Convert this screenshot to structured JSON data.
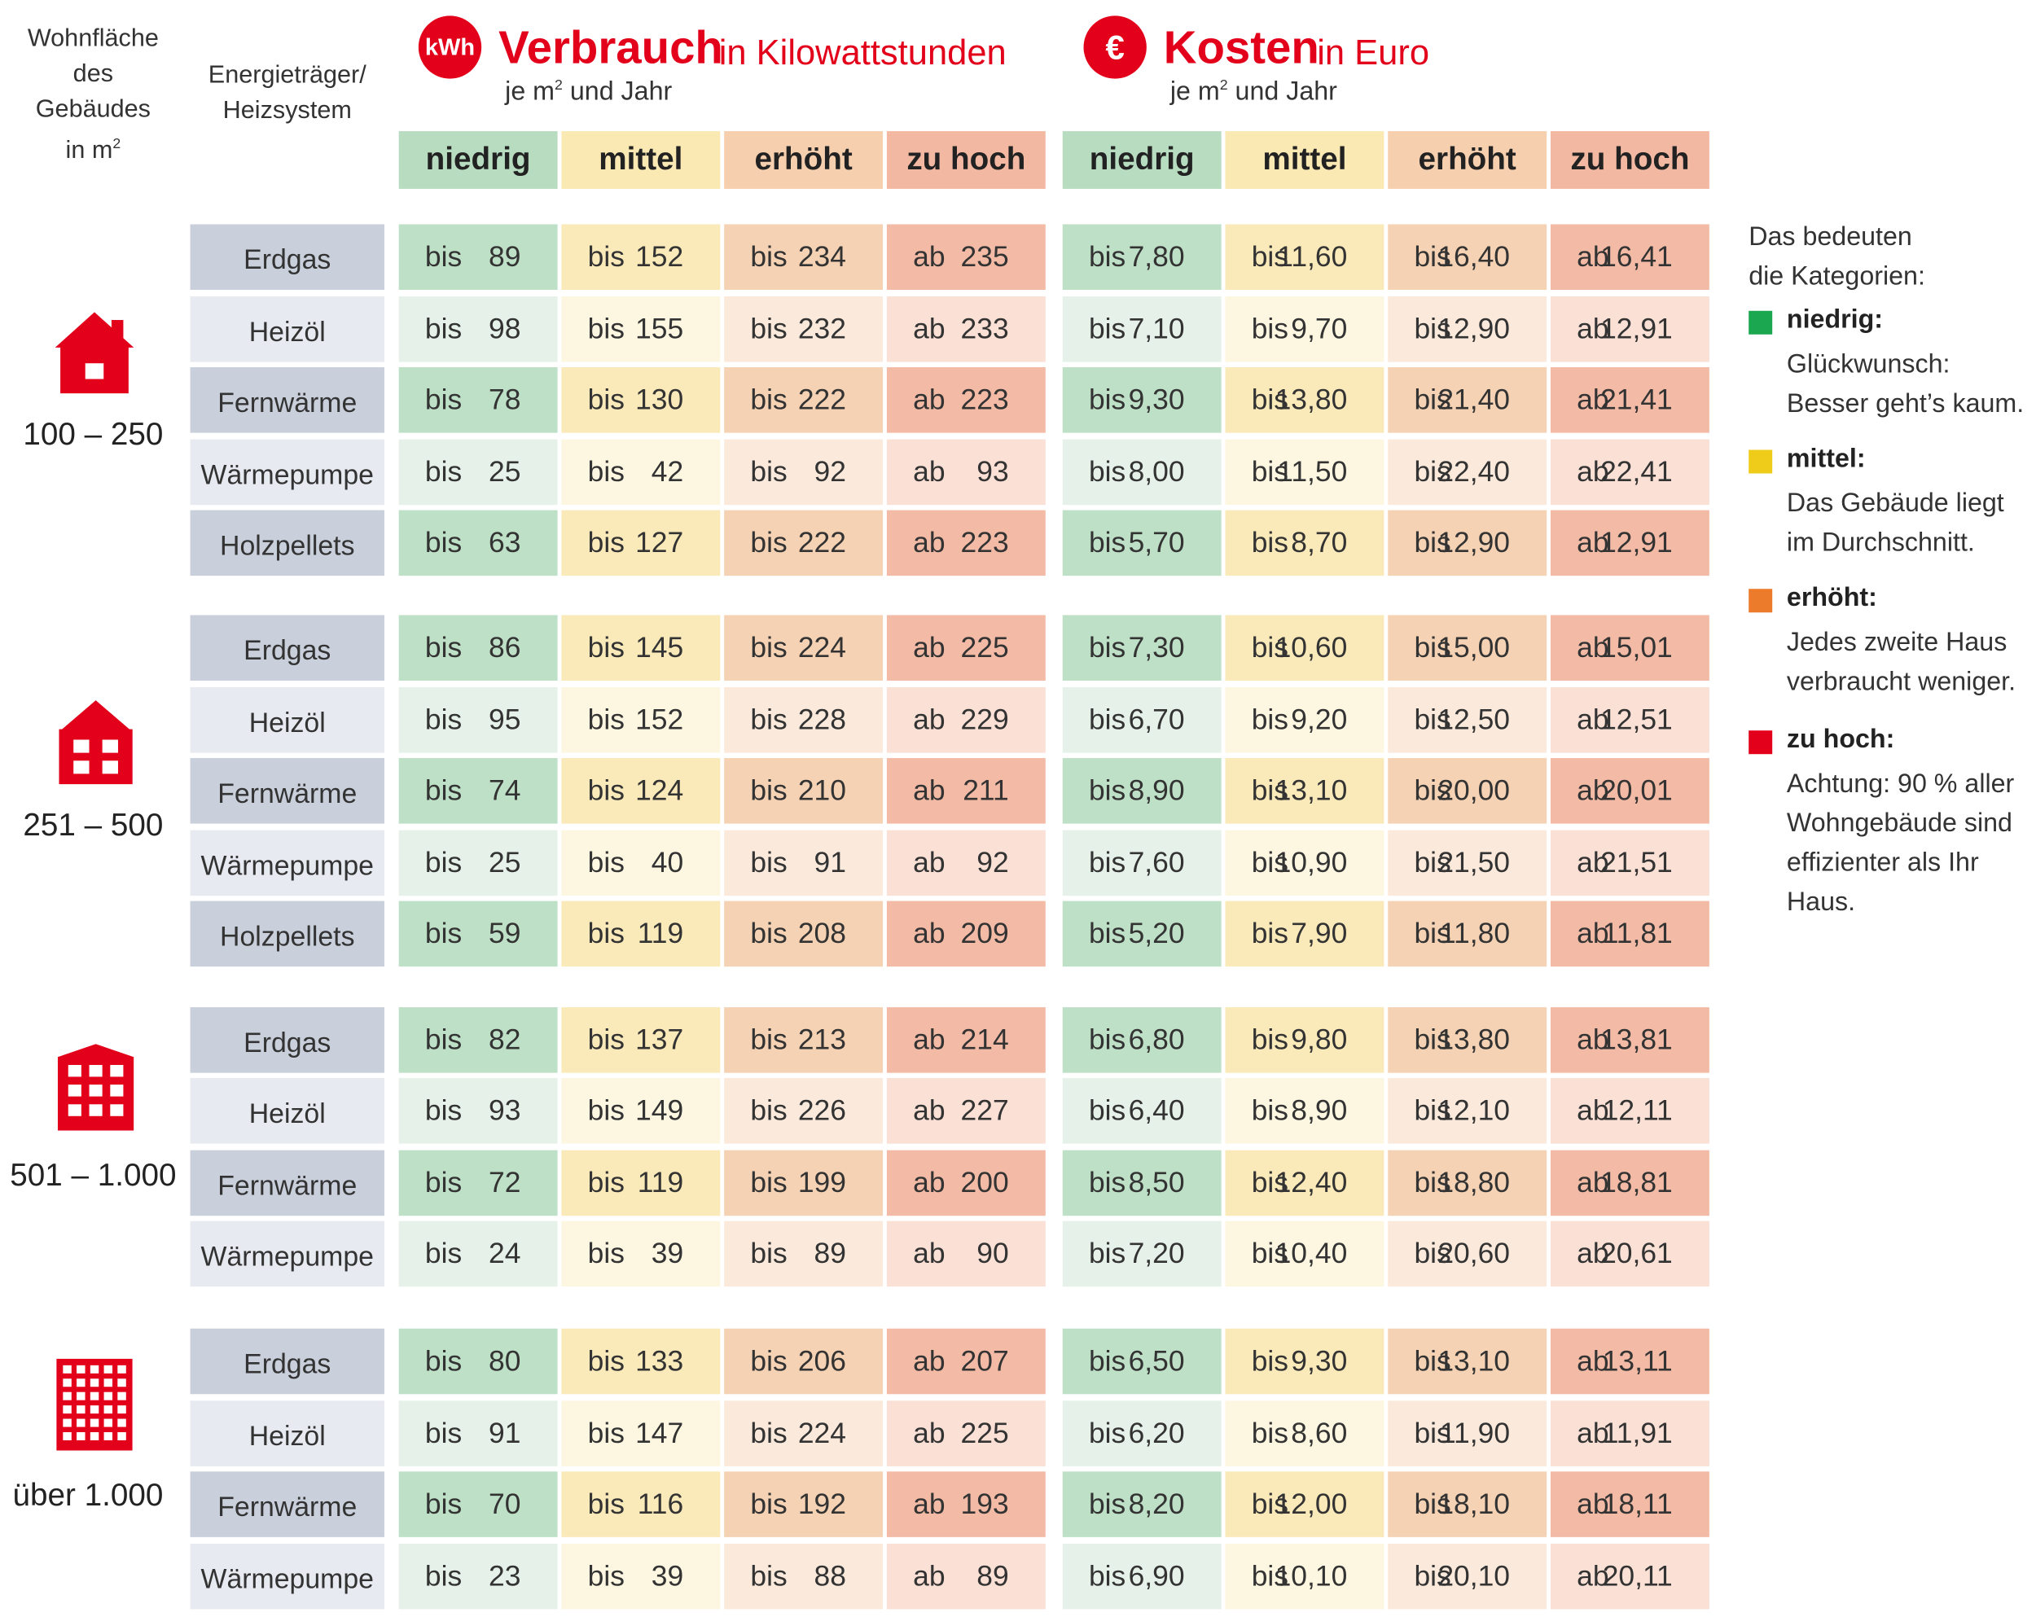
{
  "header": {
    "area_label": "Wohnfläche des Gebäudes in m",
    "area_label_lines": [
      "Wohnfläche",
      "des",
      "Gebäudes",
      "in m"
    ],
    "area_sup": "2",
    "carrier_label_lines": [
      "Energieträger/",
      "Heizsystem"
    ],
    "consumption": {
      "badge": "kWh",
      "title": "Verbrauch",
      "unit": "in Kilowattstunden",
      "sub_a": "je m",
      "sub_sup": "2",
      "sub_b": " und Jahr"
    },
    "cost": {
      "badge": "€",
      "title": "Kosten",
      "unit": "in Euro",
      "sub_a": "je m",
      "sub_sup": "2",
      "sub_b": " und Jahr"
    },
    "categories": [
      "niedrig",
      "mittel",
      "erhöht",
      "zu hoch"
    ]
  },
  "colors": {
    "accent": "#e2001a",
    "carrier_dark": "#c9d0dc",
    "carrier_light": "#e7eaf0",
    "cat_head": [
      "#b8dcc0",
      "#fbe9b4",
      "#f6cfae",
      "#f3b8a2"
    ],
    "cell_dark": [
      "#bee0c6",
      "#fae9b9",
      "#f5d2b3",
      "#f3bba6"
    ],
    "cell_light": [
      "#e6f2e9",
      "#fdf6e0",
      "#fbeadb",
      "#fae0d5"
    ],
    "legend": [
      "#1aa74f",
      "#f0cc1a",
      "#ec7b2b",
      "#e2001a"
    ]
  },
  "prefix": {
    "upto": "bis",
    "from": "ab"
  },
  "groups": [
    {
      "size": "100 – 250",
      "icon": "single-house-icon",
      "rows": [
        {
          "carrier": "Erdgas",
          "kwh": [
            "89",
            "152",
            "234",
            "235"
          ],
          "eur": [
            "7,80",
            "11,60",
            "16,40",
            "16,41"
          ]
        },
        {
          "carrier": "Heizöl",
          "kwh": [
            "98",
            "155",
            "232",
            "233"
          ],
          "eur": [
            "7,10",
            "9,70",
            "12,90",
            "12,91"
          ]
        },
        {
          "carrier": "Fernwärme",
          "kwh": [
            "78",
            "130",
            "222",
            "223"
          ],
          "eur": [
            "9,30",
            "13,80",
            "21,40",
            "21,41"
          ]
        },
        {
          "carrier": "Wärmepumpe",
          "kwh": [
            "25",
            "42",
            "92",
            "93"
          ],
          "eur": [
            "8,00",
            "11,50",
            "22,40",
            "22,41"
          ]
        },
        {
          "carrier": "Holzpellets",
          "kwh": [
            "63",
            "127",
            "222",
            "223"
          ],
          "eur": [
            "5,70",
            "8,70",
            "12,90",
            "12,91"
          ]
        }
      ]
    },
    {
      "size": "251 – 500",
      "icon": "two-family-house-icon",
      "rows": [
        {
          "carrier": "Erdgas",
          "kwh": [
            "86",
            "145",
            "224",
            "225"
          ],
          "eur": [
            "7,30",
            "10,60",
            "15,00",
            "15,01"
          ]
        },
        {
          "carrier": "Heizöl",
          "kwh": [
            "95",
            "152",
            "228",
            "229"
          ],
          "eur": [
            "6,70",
            "9,20",
            "12,50",
            "12,51"
          ]
        },
        {
          "carrier": "Fernwärme",
          "kwh": [
            "74",
            "124",
            "210",
            "211"
          ],
          "eur": [
            "8,90",
            "13,10",
            "20,00",
            "20,01"
          ]
        },
        {
          "carrier": "Wärmepumpe",
          "kwh": [
            "25",
            "40",
            "91",
            "92"
          ],
          "eur": [
            "7,60",
            "10,90",
            "21,50",
            "21,51"
          ]
        },
        {
          "carrier": "Holzpellets",
          "kwh": [
            "59",
            "119",
            "208",
            "209"
          ],
          "eur": [
            "5,20",
            "7,90",
            "11,80",
            "11,81"
          ]
        }
      ]
    },
    {
      "size": "501 – 1.000",
      "icon": "apartment-building-icon",
      "rows": [
        {
          "carrier": "Erdgas",
          "kwh": [
            "82",
            "137",
            "213",
            "214"
          ],
          "eur": [
            "6,80",
            "9,80",
            "13,80",
            "13,81"
          ]
        },
        {
          "carrier": "Heizöl",
          "kwh": [
            "93",
            "149",
            "226",
            "227"
          ],
          "eur": [
            "6,40",
            "8,90",
            "12,10",
            "12,11"
          ]
        },
        {
          "carrier": "Fernwärme",
          "kwh": [
            "72",
            "119",
            "199",
            "200"
          ],
          "eur": [
            "8,50",
            "12,40",
            "18,80",
            "18,81"
          ]
        },
        {
          "carrier": "Wärmepumpe",
          "kwh": [
            "24",
            "39",
            "89",
            "90"
          ],
          "eur": [
            "7,20",
            "10,40",
            "20,60",
            "20,61"
          ]
        }
      ]
    },
    {
      "size": "über 1.000",
      "icon": "high-rise-building-icon",
      "rows": [
        {
          "carrier": "Erdgas",
          "kwh": [
            "80",
            "133",
            "206",
            "207"
          ],
          "eur": [
            "6,50",
            "9,30",
            "13,10",
            "13,11"
          ]
        },
        {
          "carrier": "Heizöl",
          "kwh": [
            "91",
            "147",
            "224",
            "225"
          ],
          "eur": [
            "6,20",
            "8,60",
            "11,90",
            "11,91"
          ]
        },
        {
          "carrier": "Fernwärme",
          "kwh": [
            "70",
            "116",
            "192",
            "193"
          ],
          "eur": [
            "8,20",
            "12,00",
            "18,10",
            "18,11"
          ]
        },
        {
          "carrier": "Wärmepumpe",
          "kwh": [
            "23",
            "39",
            "88",
            "89"
          ],
          "eur": [
            "6,90",
            "10,10",
            "20,10",
            "20,11"
          ]
        }
      ]
    }
  ],
  "legend": {
    "intro_lines": [
      "Das bedeuten",
      "die Kategorien:"
    ],
    "items": [
      {
        "label": "niedrig:",
        "lines": [
          "Glückwunsch:",
          "Besser geht’s kaum."
        ]
      },
      {
        "label": "mittel:",
        "lines": [
          "Das Gebäude liegt",
          "im Durchschnitt."
        ]
      },
      {
        "label": "erhöht:",
        "lines": [
          "Jedes zweite Haus",
          "verbraucht weniger."
        ]
      },
      {
        "label": "zu hoch:",
        "lines": [
          "Achtung: 90 % aller",
          "Wohngebäude sind",
          "effizienter als Ihr",
          "Haus."
        ]
      }
    ]
  }
}
